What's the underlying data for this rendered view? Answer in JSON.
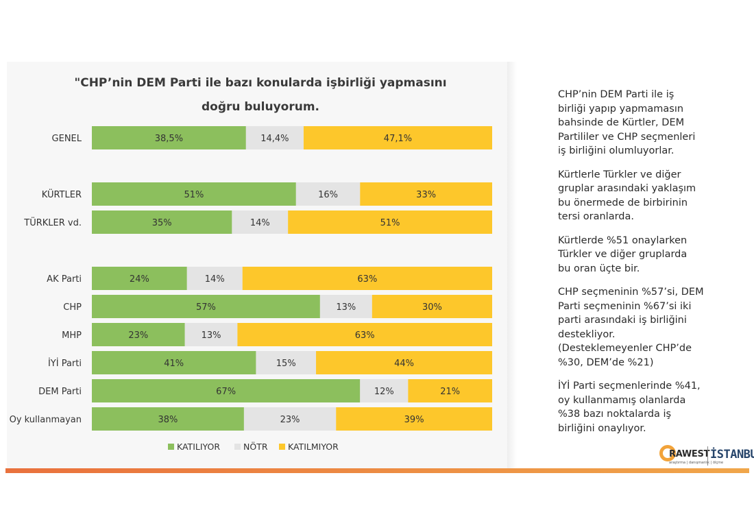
{
  "title_lines": [
    "\"CHP’nin DEM Parti ile bazı konularda işbirliği yapmasını",
    "doğru buluyorum."
  ],
  "colors": {
    "katiliyor": "#8cbf5d",
    "notr": "#e4e4e4",
    "katilmiyor": "#fdc72b",
    "accent": "#e9713d"
  },
  "chart_data": {
    "type": "bar",
    "orientation": "horizontal",
    "stacked": true,
    "categories": [
      "GENEL",
      "KÜRTLER",
      "TÜRKLER vd.",
      "AK Parti",
      "CHP",
      "MHP",
      "İYİ Parti",
      "DEM Parti",
      "Oy kullanmayan"
    ],
    "series": [
      {
        "name": "KATILIYOR",
        "values": [
          38.5,
          51,
          35,
          24,
          57,
          23,
          41,
          67,
          38
        ],
        "labels": [
          "38,5%",
          "51%",
          "35%",
          "24%",
          "57%",
          "23%",
          "41%",
          "67%",
          "38%"
        ]
      },
      {
        "name": "NÖTR",
        "values": [
          14.4,
          16,
          14,
          14,
          13,
          13,
          15,
          12,
          23
        ],
        "labels": [
          "14,4%",
          "16%",
          "14%",
          "14%",
          "13%",
          "13%",
          "15%",
          "12%",
          "23%"
        ]
      },
      {
        "name": "KATILMIYOR",
        "values": [
          47.1,
          33,
          51,
          63,
          30,
          63,
          44,
          21,
          39
        ],
        "labels": [
          "47,1%",
          "33%",
          "51%",
          "63%",
          "30%",
          "63%",
          "44%",
          "21%",
          "39%"
        ]
      }
    ],
    "xlim": [
      0,
      100
    ],
    "legend_position": "bottom",
    "grid": false
  },
  "side_paragraphs": [
    "CHP’nin DEM Parti ile iş\nbirliği yapıp yapmamasın\nbahsinde de Kürtler, DEM\nPartililer ve CHP seçmenleri\niş birliğini olumluyorlar.",
    "Kürtlerle Türkler ve diğer\ngruplar arasındaki yaklaşım\nbu önermede de birbirinin\ntersi oranlarda.",
    "Kürtlerde %51 onaylarken\nTürkler ve diğer gruplarda\nbu oran üçte bir.",
    "CHP seçmeninin %57’si, DEM\nParti seçmeninin %67’si iki\nparti arasındaki iş birliğini\ndestekliyor.\n(Desteklemeyenler CHP’de\n%30, DEM’de %21)",
    "İYİ Parti seçmenlerinde %41,\noy kullanmamış olanlarda\n%38 bazı noktalarda iş\nbirliğini onaylıyor."
  ],
  "logo": {
    "brand": "RAWEST",
    "tagline": "araştırma | danışmanlık | ölçme",
    "city": "İSTANBUL"
  }
}
